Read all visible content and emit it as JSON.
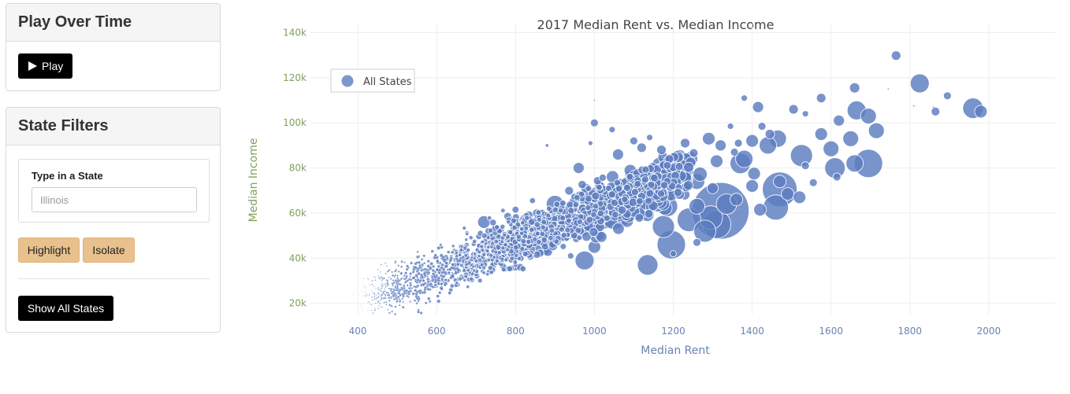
{
  "play_panel": {
    "title": "Play Over Time",
    "play_label": "Play",
    "play_icon": "play-icon"
  },
  "filter_panel": {
    "title": "State Filters",
    "input_label": "Type in a State",
    "input_placeholder": "Illinois",
    "highlight_label": "Highlight",
    "isolate_label": "Isolate",
    "show_all_label": "Show All States"
  },
  "colors": {
    "bubble": "#5b7dc0",
    "y_axis_text": "#7fa05a",
    "x_axis_text": "#6a83b3",
    "highlight_button": "#e8c18d",
    "dark_button": "#000000"
  },
  "chart_data": {
    "type": "scatter",
    "title": "2017 Median Rent vs. Median Income",
    "xlabel": "Median Rent",
    "ylabel": "Median Income",
    "xlim": [
      280,
      2170
    ],
    "ylim": [
      15000,
      144000
    ],
    "x_ticks": [
      400,
      600,
      800,
      1000,
      1200,
      1400,
      1600,
      1800,
      2000
    ],
    "x_tick_labels": [
      "400",
      "600",
      "800",
      "1000",
      "1200",
      "1400",
      "1600",
      "1800",
      "2000"
    ],
    "y_ticks": [
      20000,
      40000,
      60000,
      80000,
      100000,
      120000,
      140000
    ],
    "y_tick_labels": [
      "20k",
      "40k",
      "60k",
      "80k",
      "100k",
      "120k",
      "140k"
    ],
    "grid": true,
    "legend": {
      "position": "top-left",
      "entries": [
        "All States"
      ]
    },
    "series": [
      {
        "name": "All States",
        "points": [
          [
            1765,
            129800,
            12
          ],
          [
            1825,
            117500,
            24
          ],
          [
            1895,
            112000,
            10
          ],
          [
            1960,
            106500,
            26
          ],
          [
            1980,
            105000,
            16
          ],
          [
            1865,
            105000,
            11
          ],
          [
            1660,
            115500,
            13
          ],
          [
            1575,
            111000,
            12
          ],
          [
            1415,
            107000,
            14
          ],
          [
            1505,
            106000,
            12
          ],
          [
            1665,
            105500,
            24
          ],
          [
            1695,
            103000,
            20
          ],
          [
            1715,
            96500,
            20
          ],
          [
            1620,
            101000,
            14
          ],
          [
            1575,
            95000,
            16
          ],
          [
            1650,
            93000,
            20
          ],
          [
            1600,
            88500,
            20
          ],
          [
            1525,
            85500,
            28
          ],
          [
            1610,
            80000,
            26
          ],
          [
            1695,
            82000,
            36
          ],
          [
            1660,
            82000,
            22
          ],
          [
            1465,
            93000,
            22
          ],
          [
            1445,
            95000,
            12
          ],
          [
            1440,
            90000,
            22
          ],
          [
            1400,
            92000,
            16
          ],
          [
            1380,
            84000,
            22
          ],
          [
            1370,
            82000,
            26
          ],
          [
            1405,
            77500,
            16
          ],
          [
            1470,
            70500,
            44
          ],
          [
            1460,
            62500,
            32
          ],
          [
            1490,
            68500,
            16
          ],
          [
            1420,
            61500,
            16
          ],
          [
            1320,
            61000,
            72
          ],
          [
            1310,
            55000,
            36
          ],
          [
            1295,
            58000,
            30
          ],
          [
            1260,
            63000,
            20
          ],
          [
            1185,
            63000,
            26
          ],
          [
            1175,
            54000,
            28
          ],
          [
            1195,
            46000,
            36
          ],
          [
            1135,
            37000,
            26
          ],
          [
            975,
            39000,
            24
          ],
          [
            940,
            55000,
            32
          ],
          [
            1020,
            61000,
            46
          ],
          [
            1050,
            58000,
            30
          ],
          [
            1000,
            57000,
            28
          ],
          [
            1040,
            68000,
            26
          ],
          [
            1100,
            65000,
            24
          ],
          [
            1150,
            72000,
            20
          ],
          [
            1215,
            85000,
            18
          ],
          [
            1290,
            93000,
            16
          ],
          [
            1335,
            64000,
            26
          ],
          [
            1360,
            66000,
            16
          ],
          [
            1095,
            76000,
            18
          ],
          [
            1145,
            78000,
            16
          ],
          [
            870,
            45000,
            22
          ],
          [
            830,
            44000,
            20
          ],
          [
            750,
            51000,
            18
          ],
          [
            720,
            56000,
            16
          ],
          [
            900,
            64000,
            22
          ],
          [
            860,
            53000,
            26
          ],
          [
            1240,
            57000,
            30
          ],
          [
            1280,
            52000,
            28
          ],
          [
            1300,
            71000,
            14
          ],
          [
            1260,
            74000,
            20
          ],
          [
            1310,
            83000,
            16
          ],
          [
            1400,
            72000,
            16
          ],
          [
            1470,
            74000,
            16
          ],
          [
            1520,
            67000,
            16
          ],
          [
            1000,
            45000,
            16
          ],
          [
            960,
            80000,
            14
          ],
          [
            1060,
            86000,
            14
          ],
          [
            1120,
            89000,
            12
          ],
          [
            1170,
            88000,
            12
          ],
          [
            1230,
            91000,
            12
          ],
          [
            1320,
            90000,
            14
          ],
          [
            1000,
            100000,
            10
          ],
          [
            1045,
            97000,
            8
          ],
          [
            1100,
            92000,
            10
          ],
          [
            1355,
            87000,
            10
          ],
          [
            1535,
            81000,
            10
          ],
          [
            1555,
            73500,
            10
          ],
          [
            1425,
            98500,
            10
          ],
          [
            1365,
            91000,
            10
          ],
          [
            1345,
            98500,
            8
          ],
          [
            1380,
            111000,
            8
          ],
          [
            1535,
            104000,
            8
          ],
          [
            1615,
            76000,
            10
          ],
          [
            1860,
            107000,
            2
          ],
          [
            1810,
            107500,
            2
          ],
          [
            1745,
            115000,
            2
          ],
          [
            1000,
            110000,
            2
          ],
          [
            880,
            90000,
            4
          ],
          [
            990,
            91000,
            6
          ],
          [
            770,
            35000,
            6
          ],
          [
            650,
            35000,
            8
          ],
          [
            800,
            37000,
            6
          ],
          [
            940,
            41000,
            8
          ],
          [
            1140,
            93500,
            8
          ],
          [
            1200,
            42000,
            8
          ],
          [
            1260,
            47000,
            10
          ]
        ]
      }
    ]
  }
}
